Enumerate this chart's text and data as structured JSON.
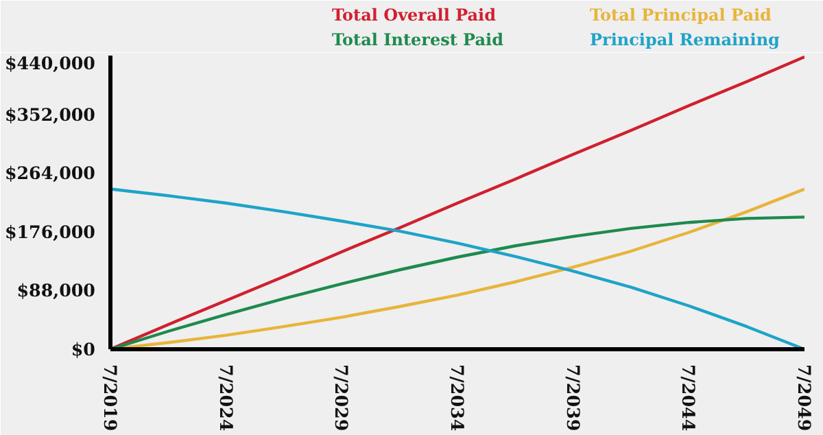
{
  "chart_data": {
    "type": "line",
    "x": [
      "2019-07",
      "2022-01",
      "2024-07",
      "2027-01",
      "2029-07",
      "2032-01",
      "2034-07",
      "2037-01",
      "2039-07",
      "2042-01",
      "2044-07",
      "2047-01",
      "2049-07"
    ],
    "series": [
      {
        "name": "Total Overall Paid",
        "color": "#d0202e",
        "values": [
          0,
          37000,
          73000,
          109000,
          146000,
          182000,
          219000,
          255000,
          292000,
          328000,
          365000,
          401000,
          438000
        ]
      },
      {
        "name": "Total Principal Paid",
        "color": "#e8b43a",
        "values": [
          0,
          10000,
          21000,
          34000,
          48000,
          64000,
          81000,
          101000,
          123000,
          147000,
          175000,
          206000,
          240000
        ]
      },
      {
        "name": "Total Interest Paid",
        "color": "#1e8a4e",
        "values": [
          0,
          27000,
          52000,
          76000,
          98000,
          119000,
          138000,
          155000,
          169000,
          181000,
          190000,
          196000,
          198000
        ]
      },
      {
        "name": "Principal Remaining",
        "color": "#1fa3c8",
        "values": [
          240000,
          230000,
          219000,
          206000,
          192000,
          177000,
          159000,
          139000,
          117000,
          93000,
          65000,
          34000,
          0
        ]
      }
    ],
    "xlim": [
      "2019-07",
      "2049-07"
    ],
    "xticks": [
      {
        "value": "2019-07",
        "label": "7/2019"
      },
      {
        "value": "2024-07",
        "label": "7/2024"
      },
      {
        "value": "2029-07",
        "label": "7/2029"
      },
      {
        "value": "2034-07",
        "label": "7/2034"
      },
      {
        "value": "2039-07",
        "label": "7/2039"
      },
      {
        "value": "2044-07",
        "label": "7/2044"
      },
      {
        "value": "2049-07",
        "label": "7/2049"
      }
    ],
    "ylim": [
      0,
      440000
    ],
    "yticks": [
      {
        "value": 0,
        "label": "$0"
      },
      {
        "value": 88000,
        "label": "$88,000"
      },
      {
        "value": 176000,
        "label": "$176,000"
      },
      {
        "value": 264000,
        "label": "$264,000"
      },
      {
        "value": 352000,
        "label": "$352,000"
      },
      {
        "value": 440000,
        "label": "$440,000"
      }
    ],
    "legend": "top",
    "grid": false,
    "line_style": "solid"
  }
}
